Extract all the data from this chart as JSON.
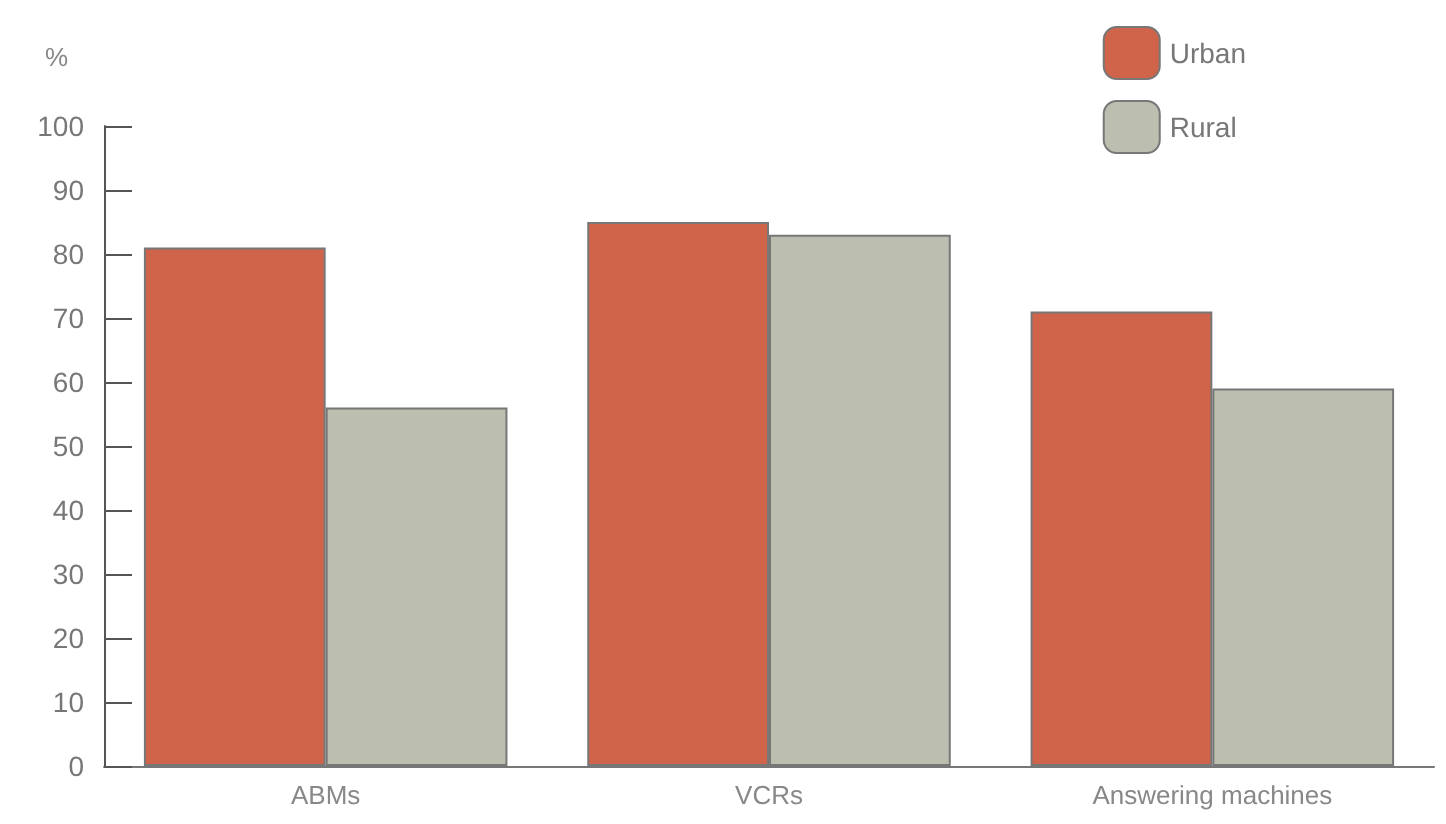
{
  "chart_data": {
    "type": "bar",
    "ylabel": "%",
    "categories": [
      "ABMs",
      "VCRs",
      "Answering machines"
    ],
    "series": [
      {
        "name": "Urban",
        "color": "#d0644a",
        "values": [
          81,
          85,
          71
        ]
      },
      {
        "name": "Rural",
        "color": "#bcbfb0",
        "values": [
          56,
          83,
          59
        ]
      }
    ],
    "ylim": [
      0,
      100
    ],
    "yticks": [
      0,
      10,
      20,
      30,
      40,
      50,
      60,
      70,
      80,
      90,
      100
    ],
    "grid": false,
    "legend": "top right"
  }
}
